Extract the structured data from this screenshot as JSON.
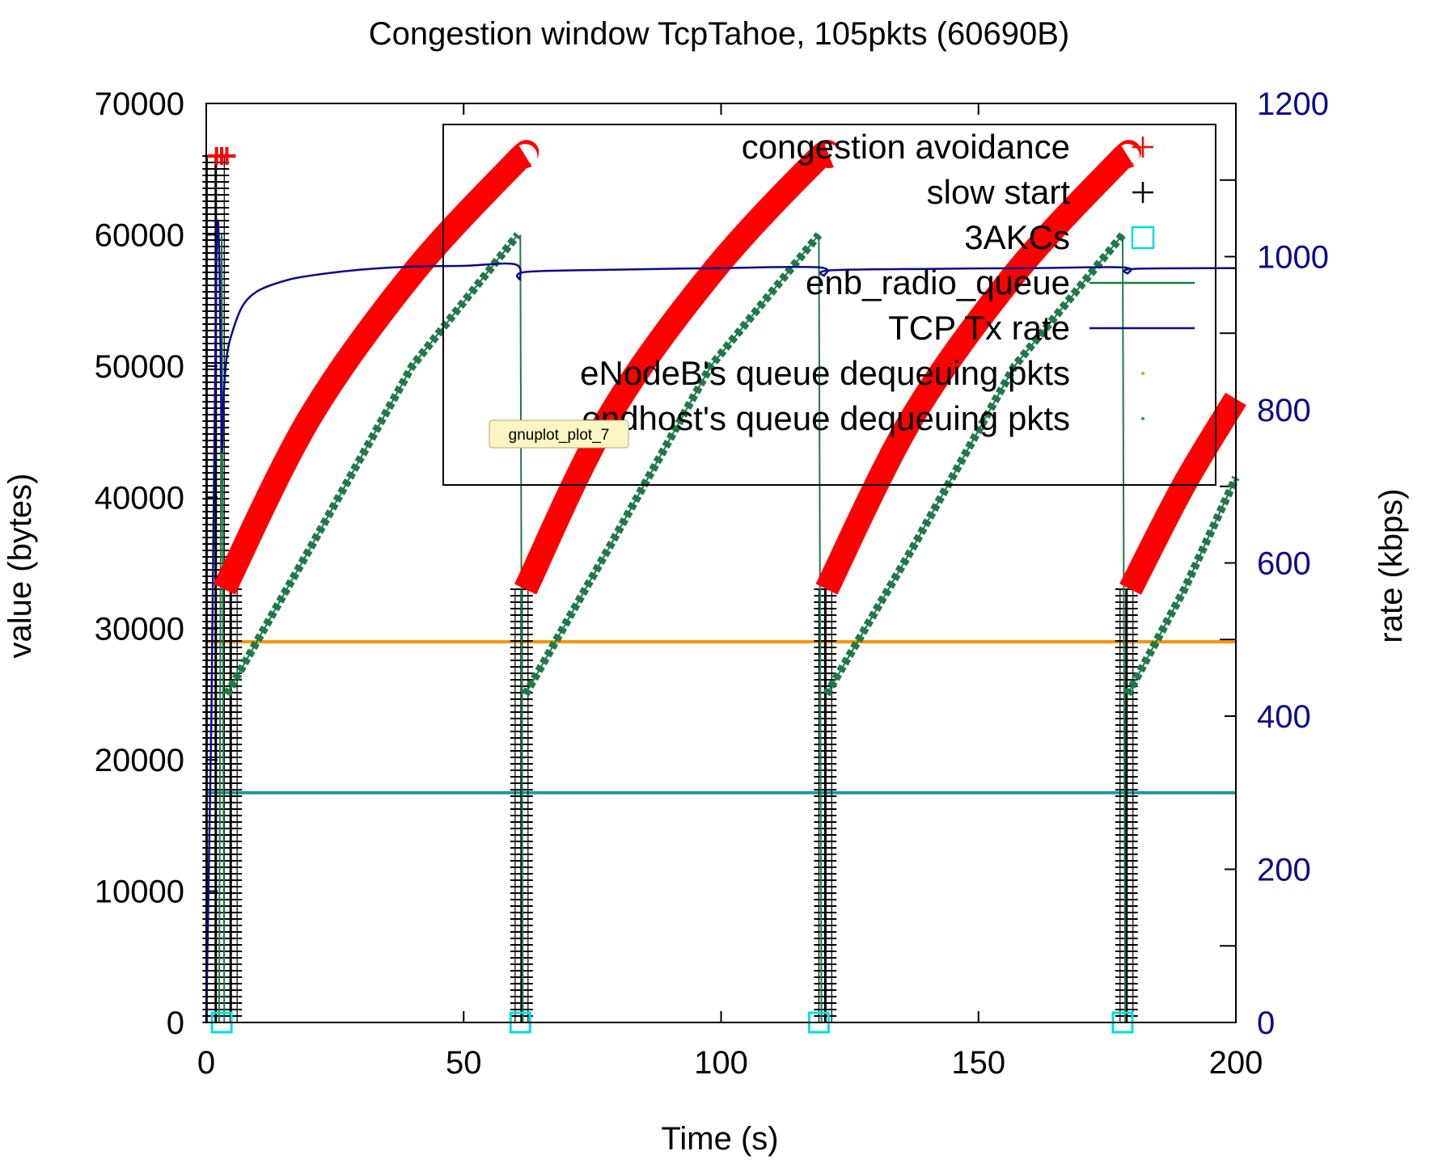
{
  "chart_data": {
    "type": "line",
    "title": "Congestion window TcpTahoe, 105pkts (60690B)",
    "xlabel": "Time (s)",
    "ylabel": "value (bytes)",
    "y2label": "rate (kbps)",
    "xlim": [
      0,
      200
    ],
    "ylim": [
      0,
      70000
    ],
    "y2lim": [
      0,
      1200
    ],
    "x_ticks": [
      0,
      50,
      100,
      150,
      200
    ],
    "y_ticks": [
      0,
      10000,
      20000,
      30000,
      40000,
      50000,
      60000,
      70000
    ],
    "y2_ticks": [
      0,
      200,
      400,
      600,
      800,
      1000,
      1200
    ],
    "legend_position": "top-right",
    "colors": {
      "congestion_avoidance": "#ff0000",
      "slow_start": "#000000",
      "three_acks": "#00dede",
      "enb_radio_queue": "#1e7a45",
      "tcp_tx_rate": "#0a0a8a",
      "enodeb_dequeue": "#f5950f",
      "endhost_dequeue": "#1a9a9a"
    },
    "legend": [
      {
        "key": "congestion_avoidance",
        "label": "congestion avoidance",
        "marker": "+",
        "color": "#ff0000"
      },
      {
        "key": "slow_start",
        "label": "slow start",
        "marker": "+",
        "color": "#000000"
      },
      {
        "key": "three_acks",
        "label": "3AKCs",
        "marker": "square",
        "color": "#00dede"
      },
      {
        "key": "enb_radio_queue",
        "label": "enb_radio_queue",
        "marker": "line",
        "color": "#1e7a45"
      },
      {
        "key": "tcp_tx_rate",
        "label": "TCP Tx rate",
        "marker": "line",
        "color": "#0a0a8a"
      },
      {
        "key": "enodeb_dequeue",
        "label": "eNodeB's queue dequeuing pkts",
        "marker": "dot",
        "color": "#f5950f"
      },
      {
        "key": "endhost_dequeue",
        "label": "endhost's queue dequeuing pkts",
        "marker": "dot",
        "color": "#1a9a9a"
      }
    ],
    "series": [
      {
        "name": "congestion avoidance",
        "axis": "y1",
        "segments": [
          {
            "x": [
              3.5,
              20,
              40,
              60,
              62
            ],
            "y": [
              33000,
              46000,
              57000,
              65500,
              66000
            ]
          },
          {
            "x": [
              62,
              78,
              98,
              118,
              121
            ],
            "y": [
              33000,
              46000,
              57000,
              65500,
              66000
            ]
          },
          {
            "x": [
              120.5,
              137,
              157,
              177,
              179
            ],
            "y": [
              33000,
              46000,
              57000,
              65500,
              66000
            ]
          },
          {
            "x": [
              179.5,
              190,
              200
            ],
            "y": [
              33000,
              41000,
              47500
            ]
          }
        ],
        "points": [
          [
            2,
            66000
          ],
          [
            3,
            66000
          ],
          [
            4,
            66000
          ]
        ]
      },
      {
        "name": "slow start",
        "axis": "y1",
        "bursts": [
          {
            "x": [
              0.2,
              3.5
            ],
            "y_top": 66000
          },
          {
            "x": [
              3.5,
              6
            ],
            "y_top": 33000
          },
          {
            "x": [
              60,
              62.5
            ],
            "y_top": 33000
          },
          {
            "x": [
              119,
              121.5
            ],
            "y_top": 33000
          },
          {
            "x": [
              177.5,
              180
            ],
            "y_top": 33000
          }
        ]
      },
      {
        "name": "3AKCs",
        "axis": "y1",
        "x": [
          3,
          61,
          119,
          178
        ],
        "y": [
          0,
          0,
          0,
          0
        ]
      },
      {
        "name": "enb_radio_queue",
        "axis": "y1",
        "segments": [
          {
            "x": [
              2.5,
              3
            ],
            "y": [
              0,
              60000
            ]
          },
          {
            "x": [
              3,
              3.5
            ],
            "y": [
              60000,
              0
            ]
          },
          {
            "x": [
              4,
              20,
              40,
              60.5
            ],
            "y": [
              25000,
              36000,
              50000,
              60000
            ]
          },
          {
            "x": [
              61,
              61.5
            ],
            "y": [
              60000,
              0
            ]
          },
          {
            "x": [
              62,
              78,
              98,
              119
            ],
            "y": [
              25000,
              36000,
              50000,
              60000
            ]
          },
          {
            "x": [
              119,
              119.5
            ],
            "y": [
              60000,
              0
            ]
          },
          {
            "x": [
              120.5,
              137,
              157,
              178
            ],
            "y": [
              25000,
              36000,
              50000,
              60000
            ]
          },
          {
            "x": [
              178,
              178.5
            ],
            "y": [
              60000,
              0
            ]
          },
          {
            "x": [
              179,
              190,
              200
            ],
            "y": [
              25000,
              33000,
              41500
            ]
          }
        ]
      },
      {
        "name": "TCP Tx rate",
        "axis": "y2",
        "x": [
          0,
          1,
          2,
          2.6,
          3,
          3.4,
          4,
          5,
          7,
          10,
          15,
          20,
          30,
          40,
          50,
          60,
          61,
          62,
          80,
          100,
          119,
          120,
          121,
          140,
          160,
          178,
          179,
          180,
          200
        ],
        "y": [
          0,
          400,
          1000,
          980,
          750,
          820,
          870,
          900,
          935,
          955,
          968,
          975,
          983,
          987,
          988,
          990,
          970,
          980,
          983,
          985,
          986,
          975,
          982,
          984,
          985,
          986,
          978,
          984,
          985
        ]
      },
      {
        "name": "eNodeB's queue dequeuing pkts",
        "axis": "y1",
        "x": [
          0,
          200
        ],
        "y": [
          29000,
          29000
        ]
      },
      {
        "name": "endhost's queue dequeuing pkts",
        "axis": "y1",
        "x": [
          0,
          200
        ],
        "y": [
          17500,
          17500
        ]
      }
    ]
  },
  "tooltip": {
    "text": "gnuplot_plot_7"
  }
}
